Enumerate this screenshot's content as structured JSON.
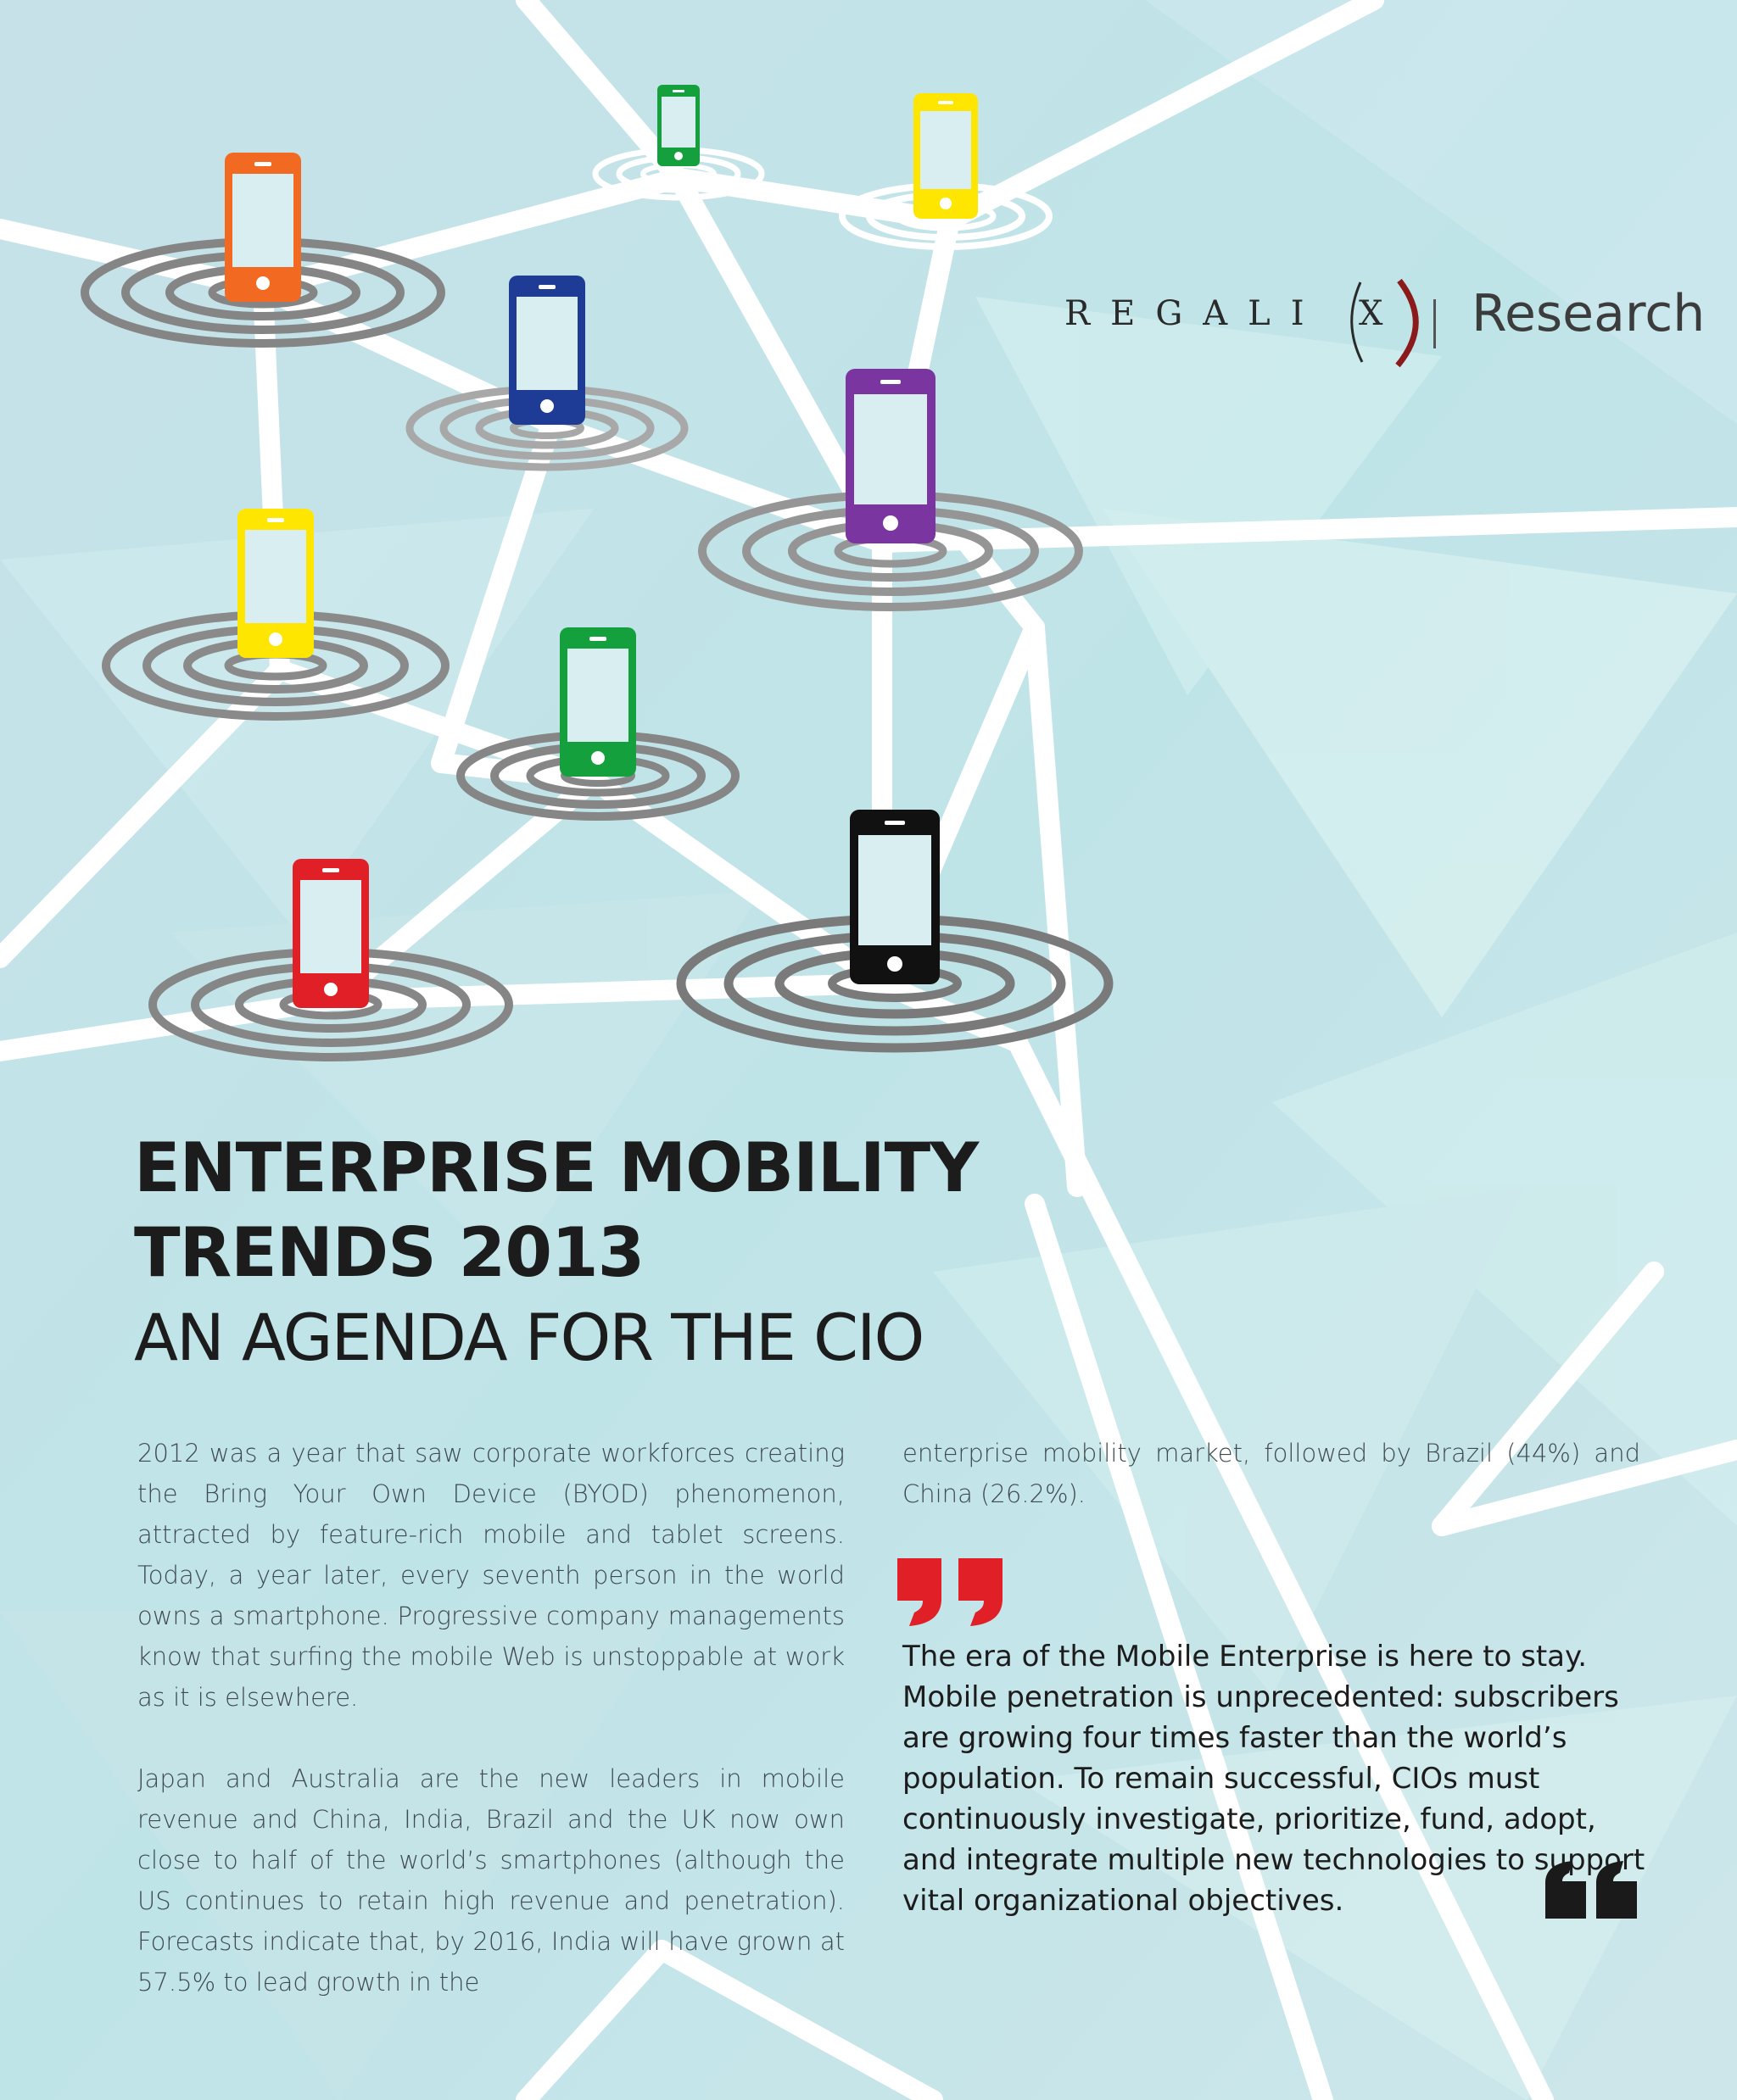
{
  "brand": {
    "logo_word": "REGALI",
    "logo_x": "X",
    "research": "Research",
    "accent_color": "#8b1a1a"
  },
  "headline": {
    "line1": "ENTERPRISE MOBILITY",
    "line2": "TRENDS 2013",
    "subtitle": "AN AGENDA FOR THE CIO"
  },
  "illustration": {
    "phone_colors": [
      "#f26a21",
      "#1e3c96",
      "#ffe600",
      "#14a03c",
      "#7a35a0",
      "#14a03c",
      "#ffe600",
      "#e02026",
      "#111111"
    ]
  },
  "body": {
    "left_para1": "2012 was a year that saw corporate workforces creating the Bring Your Own Device (BYOD) phenomenon, attracted by feature-rich mobile and tablet screens. Today, a year later, every seventh person in the world owns a smartphone. Progressive company managements know that surfing the mobile Web is unstoppable at work as it is elsewhere.",
    "left_para2": "Japan and Australia are the new leaders in mobile revenue and China, India, Brazil and the UK now own close to half of the world’s smartphones (although the US continues to retain high revenue and penetration). Forecasts indicate that, by 2016, India will have grown at 57.5% to lead growth in the",
    "right_para1": "enterprise mobility market, followed by Brazil (44%) and China (26.2%)."
  },
  "quote": {
    "text": "The era of the Mobile Enterprise is here to stay. Mobile penetration is unprecedented: subscribers are growing four times faster than the world’s population. To remain successful, CIOs must continuously investigate, prioritize, fund, adopt, and integrate multiple new technologies to support vital organizational objectives.",
    "open_color": "#e02026",
    "close_color": "#1a1a1a"
  }
}
